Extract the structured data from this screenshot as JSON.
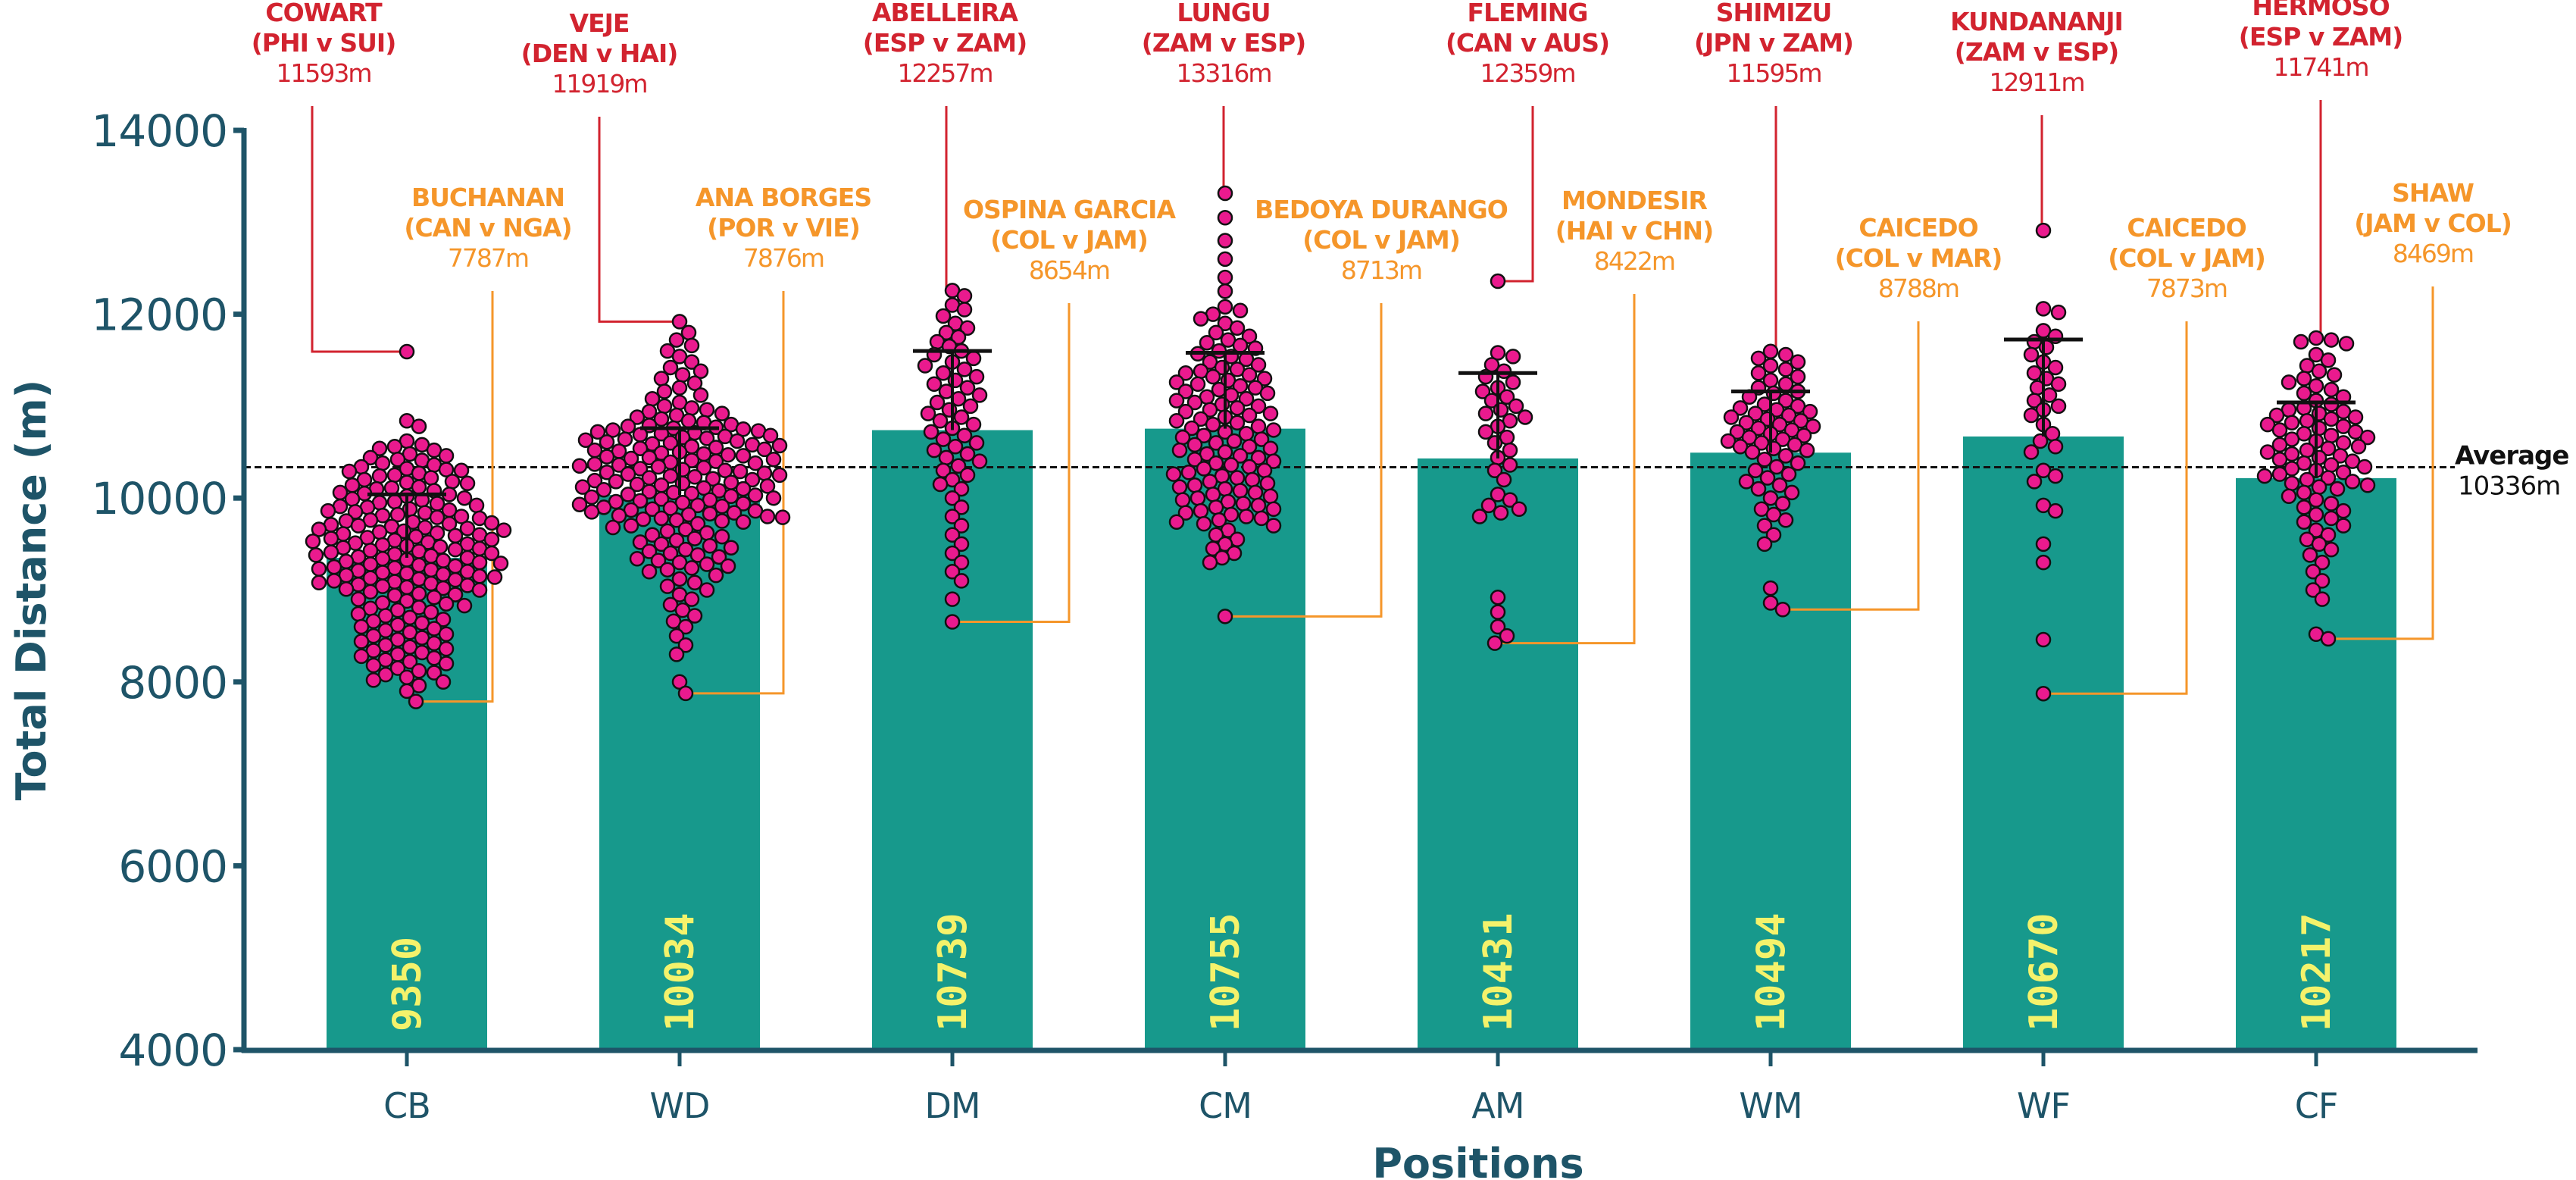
{
  "chart_data": {
    "type": "bar",
    "subtype": "bar-with-beeswarm-points-and-sd-error-bars",
    "xlabel": "Positions",
    "ylabel": "Total Distance (m)",
    "ylim": [
      4000,
      14000
    ],
    "yticks": [
      4000,
      6000,
      8000,
      10000,
      12000,
      14000
    ],
    "ytick_labels": [
      "4000",
      "6000",
      "8000",
      "10000",
      "12000",
      "14000"
    ],
    "grid": false,
    "categories": [
      "CB",
      "WD",
      "DM",
      "CM",
      "AM",
      "WM",
      "WF",
      "CF"
    ],
    "values": [
      9350,
      10034,
      10739,
      10755,
      10431,
      10494,
      10670,
      10217
    ],
    "value_labels": [
      "9350",
      "10034",
      "10739",
      "10755",
      "10431",
      "10494",
      "10670",
      "10217"
    ],
    "error_upper": [
      10040,
      10760,
      11600,
      11580,
      11360,
      11160,
      11725,
      11040
    ],
    "average": {
      "label": "Average",
      "value": 10336,
      "value_label": "10336m"
    },
    "colors": {
      "bar": "#17998c",
      "bar_label": "#f4f26b",
      "point_fill": "#ea1a8e",
      "point_stroke": "#111111",
      "axis": "#1e5468",
      "max_annotation": "#d2232f",
      "min_annotation": "#f5962a",
      "average_line": "#111111"
    },
    "annotations": {
      "max": [
        {
          "category": "CB",
          "name": "COWART",
          "match": "(PHI v SUI)",
          "value": 11593,
          "value_label": "11593m"
        },
        {
          "category": "WD",
          "name": "VEJE",
          "match": "(DEN v HAI)",
          "value": 11919,
          "value_label": "11919m"
        },
        {
          "category": "DM",
          "name": "ABELLEIRA",
          "match": "(ESP v ZAM)",
          "value": 12257,
          "value_label": "12257m"
        },
        {
          "category": "CM",
          "name": "LUNGU",
          "match": "(ZAM v ESP)",
          "value": 13316,
          "value_label": "13316m"
        },
        {
          "category": "AM",
          "name": "FLEMING",
          "match": "(CAN v AUS)",
          "value": 12359,
          "value_label": "12359m"
        },
        {
          "category": "WM",
          "name": "SHIMIZU",
          "match": "(JPN v ZAM)",
          "value": 11595,
          "value_label": "11595m"
        },
        {
          "category": "WF",
          "name": "KUNDANANJI",
          "match": "(ZAM v ESP)",
          "value": 12911,
          "value_label": "12911m"
        },
        {
          "category": "CF",
          "name": "HERMOSO",
          "match": "(ESP v ZAM)",
          "value": 11741,
          "value_label": "11741m"
        }
      ],
      "min": [
        {
          "category": "CB",
          "name": "BUCHANAN",
          "match": "(CAN v NGA)",
          "value": 7787,
          "value_label": "7787m"
        },
        {
          "category": "WD",
          "name": "ANA BORGES",
          "match": "(POR v VIE)",
          "value": 7876,
          "value_label": "7876m"
        },
        {
          "category": "DM",
          "name": "OSPINA GARCIA",
          "match": "(COL v JAM)",
          "value": 8654,
          "value_label": "8654m"
        },
        {
          "category": "CM",
          "name": "BEDOYA DURANGO",
          "match": "(COL v JAM)",
          "value": 8713,
          "value_label": "8713m"
        },
        {
          "category": "AM",
          "name": "MONDESIR",
          "match": "(HAI v CHN)",
          "value": 8422,
          "value_label": "8422m"
        },
        {
          "category": "WM",
          "name": "CAICEDO",
          "match": "(COL v MAR)",
          "value": 8788,
          "value_label": "8788m"
        },
        {
          "category": "WF",
          "name": "CAICEDO",
          "match": "(COL v JAM)",
          "value": 7873,
          "value_label": "7873m"
        },
        {
          "category": "CF",
          "name": "SHAW",
          "match": "(JAM v COL)",
          "value": 8469,
          "value_label": "8469m"
        }
      ]
    },
    "points": {
      "CB": [
        11593,
        10840,
        10780,
        10620,
        10580,
        10560,
        10540,
        10520,
        10480,
        10460,
        10440,
        10420,
        10410,
        10380,
        10360,
        10340,
        10320,
        10310,
        10300,
        10290,
        10270,
        10250,
        10240,
        10220,
        10200,
        10180,
        10170,
        10160,
        10140,
        10120,
        10110,
        10100,
        10080,
        10060,
        10050,
        10040,
        10020,
        10000,
        9990,
        9980,
        9960,
        9950,
        9940,
        9920,
        9910,
        9900,
        9880,
        9870,
        9860,
        9850,
        9840,
        9820,
        9810,
        9800,
        9790,
        9780,
        9760,
        9750,
        9740,
        9730,
        9720,
        9710,
        9700,
        9690,
        9680,
        9670,
        9660,
        9650,
        9640,
        9630,
        9620,
        9610,
        9600,
        9590,
        9580,
        9570,
        9560,
        9550,
        9540,
        9530,
        9520,
        9510,
        9500,
        9490,
        9480,
        9470,
        9460,
        9450,
        9440,
        9430,
        9420,
        9410,
        9400,
        9390,
        9380,
        9370,
        9360,
        9350,
        9340,
        9330,
        9320,
        9310,
        9300,
        9290,
        9280,
        9270,
        9260,
        9250,
        9240,
        9230,
        9220,
        9210,
        9200,
        9190,
        9180,
        9170,
        9160,
        9150,
        9140,
        9130,
        9120,
        9110,
        9100,
        9090,
        9080,
        9070,
        9060,
        9050,
        9040,
        9030,
        9020,
        9010,
        9000,
        8980,
        8960,
        8950,
        8940,
        8920,
        8900,
        8880,
        8860,
        8850,
        8830,
        8810,
        8800,
        8780,
        8760,
        8740,
        8720,
        8700,
        8680,
        8660,
        8640,
        8620,
        8600,
        8580,
        8560,
        8540,
        8520,
        8500,
        8480,
        8460,
        8440,
        8420,
        8400,
        8380,
        8360,
        8340,
        8320,
        8300,
        8280,
        8260,
        8240,
        8220,
        8200,
        8180,
        8150,
        8120,
        8100,
        8080,
        8050,
        8020,
        8000,
        7960,
        7900,
        7787
      ],
      "WD": [
        11919,
        11800,
        11720,
        11660,
        11600,
        11540,
        11480,
        11420,
        11380,
        11340,
        11300,
        11250,
        11200,
        11160,
        11120,
        11080,
        11040,
        11000,
        10980,
        10960,
        10940,
        10920,
        10900,
        10880,
        10860,
        10840,
        10820,
        10800,
        10790,
        10780,
        10770,
        10760,
        10750,
        10740,
        10730,
        10720,
        10710,
        10700,
        10690,
        10680,
        10670,
        10660,
        10650,
        10640,
        10630,
        10620,
        10610,
        10600,
        10590,
        10580,
        10570,
        10560,
        10550,
        10540,
        10530,
        10520,
        10510,
        10500,
        10490,
        10480,
        10470,
        10460,
        10450,
        10440,
        10430,
        10420,
        10410,
        10400,
        10390,
        10380,
        10370,
        10360,
        10350,
        10340,
        10330,
        10320,
        10310,
        10300,
        10290,
        10280,
        10270,
        10260,
        10250,
        10240,
        10230,
        10220,
        10210,
        10200,
        10190,
        10180,
        10170,
        10160,
        10150,
        10140,
        10130,
        10120,
        10110,
        10100,
        10090,
        10080,
        10070,
        10060,
        10050,
        10040,
        10030,
        10020,
        10010,
        10000,
        9990,
        9980,
        9970,
        9960,
        9950,
        9940,
        9930,
        9920,
        9910,
        9900,
        9890,
        9880,
        9870,
        9860,
        9850,
        9840,
        9830,
        9820,
        9810,
        9800,
        9790,
        9780,
        9770,
        9760,
        9750,
        9740,
        9720,
        9700,
        9680,
        9660,
        9640,
        9620,
        9600,
        9580,
        9560,
        9540,
        9520,
        9500,
        9480,
        9460,
        9440,
        9420,
        9400,
        9380,
        9360,
        9340,
        9320,
        9300,
        9280,
        9260,
        9240,
        9220,
        9200,
        9160,
        9120,
        9080,
        9040,
        9000,
        8950,
        8900,
        8840,
        8780,
        8720,
        8660,
        8600,
        8500,
        8400,
        8300,
        8000,
        7876
      ],
      "DM": [
        12257,
        12200,
        12100,
        12050,
        11980,
        11900,
        11850,
        11800,
        11750,
        11700,
        11650,
        11600,
        11560,
        11520,
        11480,
        11440,
        11400,
        11360,
        11320,
        11280,
        11240,
        11200,
        11160,
        11120,
        11080,
        11040,
        11000,
        10960,
        10920,
        10880,
        10840,
        10800,
        10760,
        10720,
        10680,
        10640,
        10600,
        10560,
        10520,
        10480,
        10440,
        10400,
        10350,
        10300,
        10250,
        10200,
        10150,
        10100,
        10000,
        9900,
        9800,
        9700,
        9600,
        9500,
        9400,
        9300,
        9200,
        9100,
        8900,
        8654
      ],
      "CM": [
        13316,
        13050,
        12800,
        12600,
        12400,
        12250,
        12080,
        12040,
        12000,
        11950,
        11900,
        11850,
        11800,
        11760,
        11720,
        11690,
        11660,
        11630,
        11600,
        11570,
        11540,
        11510,
        11480,
        11450,
        11420,
        11400,
        11380,
        11360,
        11340,
        11320,
        11300,
        11280,
        11260,
        11240,
        11220,
        11200,
        11180,
        11160,
        11140,
        11120,
        11100,
        11080,
        11060,
        11040,
        11020,
        11000,
        10980,
        10960,
        10940,
        10920,
        10900,
        10880,
        10860,
        10840,
        10820,
        10800,
        10780,
        10760,
        10740,
        10720,
        10700,
        10680,
        10660,
        10640,
        10620,
        10600,
        10580,
        10560,
        10540,
        10520,
        10500,
        10480,
        10460,
        10440,
        10420,
        10400,
        10380,
        10360,
        10340,
        10320,
        10300,
        10280,
        10260,
        10240,
        10220,
        10200,
        10180,
        10160,
        10140,
        10120,
        10100,
        10080,
        10060,
        10040,
        10020,
        10000,
        9980,
        9960,
        9940,
        9920,
        9900,
        9880,
        9860,
        9840,
        9820,
        9800,
        9780,
        9760,
        9740,
        9720,
        9700,
        9650,
        9600,
        9550,
        9500,
        9450,
        9400,
        9350,
        9300,
        8713
      ],
      "AM": [
        12359,
        11580,
        11540,
        11450,
        11380,
        11320,
        11260,
        11200,
        11160,
        11100,
        11060,
        11000,
        10960,
        10920,
        10880,
        10840,
        10780,
        10720,
        10660,
        10600,
        10520,
        10440,
        10360,
        10300,
        10200,
        10040,
        9980,
        9920,
        9880,
        9840,
        9800,
        8920,
        8760,
        8600,
        8500,
        8422
      ],
      "WM": [
        11595,
        11560,
        11520,
        11480,
        11440,
        11400,
        11360,
        11320,
        11280,
        11240,
        11200,
        11160,
        11140,
        11100,
        11060,
        11020,
        11000,
        10980,
        10960,
        10940,
        10920,
        10900,
        10880,
        10860,
        10840,
        10820,
        10800,
        10780,
        10760,
        10740,
        10720,
        10700,
        10680,
        10660,
        10640,
        10620,
        10600,
        10580,
        10560,
        10540,
        10520,
        10500,
        10460,
        10420,
        10380,
        10340,
        10300,
        10260,
        10220,
        10180,
        10140,
        10100,
        10060,
        10000,
        9940,
        9880,
        9820,
        9760,
        9700,
        9600,
        9500,
        9020,
        8860,
        8788
      ],
      "WF": [
        12911,
        12060,
        12020,
        11820,
        11760,
        11700,
        11640,
        11560,
        11480,
        11420,
        11360,
        11300,
        11240,
        11200,
        11120,
        11060,
        11000,
        10960,
        10900,
        10800,
        10700,
        10620,
        10560,
        10500,
        10300,
        10240,
        10180,
        9920,
        9860,
        9500,
        9300,
        8460,
        7873
      ],
      "CF": [
        11741,
        11720,
        11700,
        11680,
        11560,
        11500,
        11440,
        11380,
        11340,
        11300,
        11260,
        11220,
        11180,
        11140,
        11100,
        11060,
        11020,
        10980,
        10960,
        10940,
        10920,
        10900,
        10880,
        10860,
        10840,
        10820,
        10800,
        10780,
        10760,
        10740,
        10720,
        10700,
        10680,
        10660,
        10640,
        10620,
        10600,
        10580,
        10560,
        10540,
        10520,
        10500,
        10480,
        10460,
        10440,
        10420,
        10400,
        10380,
        10360,
        10340,
        10320,
        10300,
        10280,
        10260,
        10240,
        10220,
        10200,
        10180,
        10160,
        10140,
        10120,
        10100,
        10060,
        10020,
        9980,
        9940,
        9900,
        9860,
        9820,
        9780,
        9740,
        9700,
        9650,
        9600,
        9550,
        9500,
        9440,
        9380,
        9300,
        9200,
        9100,
        9000,
        8900,
        8520,
        8469
      ]
    }
  }
}
